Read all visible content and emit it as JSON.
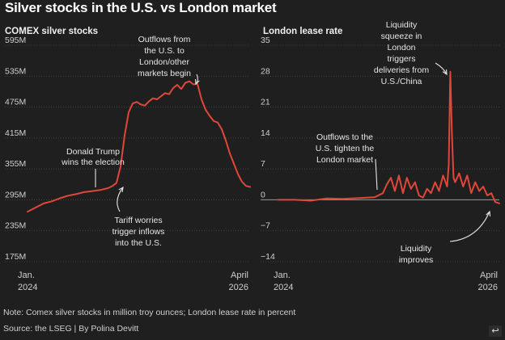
{
  "title": "Silver stocks in the U.S. vs London market",
  "footnote": "Note: Comex silver stocks in million troy ounces; London lease rate in percent",
  "source": "Source: the LSEG | By Polina Devitt",
  "corner_icon": "exit-fullscreen-icon",
  "colors": {
    "line": "#e0473a",
    "background": "#1f1f1f",
    "grid": "#4a4a4a",
    "text": "#cfcfcf"
  },
  "chart_data": [
    {
      "type": "line",
      "title": "COMEX silver stocks",
      "ylim": [
        175,
        595
      ],
      "yticks": [
        595,
        535,
        475,
        415,
        355,
        295,
        235,
        175
      ],
      "ytick_labels": [
        "595M",
        "535M",
        "475M",
        "415M",
        "355M",
        "295M",
        "235M",
        "175M"
      ],
      "xlim": [
        0,
        27.5
      ],
      "xtick_labels": [
        [
          "Jan.",
          "2024"
        ],
        [
          "April",
          "2026"
        ]
      ],
      "x": [
        0,
        1,
        2,
        3,
        4,
        5,
        6,
        7,
        8,
        9,
        10,
        10.5,
        11,
        11.5,
        12,
        12.5,
        13,
        13.5,
        14,
        14.5,
        15,
        15.5,
        16,
        16.5,
        17,
        17.5,
        18,
        18.5,
        19,
        19.5,
        20,
        20.5,
        21,
        21.5,
        22,
        22.5,
        23,
        23.5,
        24,
        24.5,
        25,
        25.5,
        26,
        26.5,
        27,
        27.5
      ],
      "values": [
        272,
        280,
        288,
        292,
        298,
        303,
        306,
        310,
        312,
        314,
        318,
        322,
        328,
        360,
        420,
        465,
        482,
        485,
        480,
        478,
        486,
        492,
        490,
        496,
        502,
        500,
        512,
        518,
        510,
        522,
        525,
        519,
        520,
        490,
        470,
        458,
        448,
        445,
        432,
        410,
        385,
        365,
        345,
        330,
        322,
        320
      ],
      "annotations": [
        {
          "text": [
            "Outflows from",
            "the U.S. to",
            "London/other",
            "markets begin"
          ]
        },
        {
          "text": [
            "Donald Trump",
            "wins the election"
          ]
        },
        {
          "text": [
            "Tariff worries",
            "trigger inflows",
            "into the U.S."
          ]
        }
      ]
    },
    {
      "type": "line",
      "title": "London lease rate",
      "ylim": [
        -14,
        35
      ],
      "yticks": [
        35,
        28,
        21,
        14,
        7,
        0,
        -7,
        -14
      ],
      "ytick_labels": [
        "35",
        "28",
        "21",
        "14",
        "7",
        "0",
        "−7",
        "−14"
      ],
      "xlim": [
        0,
        27.5
      ],
      "xtick_labels": [
        [
          "Jan.",
          "2024"
        ],
        [
          "April",
          "2026"
        ]
      ],
      "x": [
        0,
        2,
        4,
        6,
        8,
        10,
        11,
        12,
        13,
        13.5,
        14,
        14.5,
        15,
        15.5,
        16,
        16.5,
        17,
        17.5,
        18,
        18.5,
        19,
        19.5,
        20,
        20.5,
        21,
        21.2,
        21.4,
        21.6,
        21.8,
        22,
        22.5,
        23,
        23.5,
        24,
        24.5,
        25,
        25.5,
        26,
        26.5,
        27,
        27.5
      ],
      "values": [
        0,
        0,
        -0.2,
        0.3,
        0.2,
        0.4,
        0.5,
        0.6,
        1.5,
        3.5,
        5,
        2,
        5.5,
        1.5,
        5,
        2.5,
        4,
        1,
        0.5,
        2.5,
        1.5,
        4,
        2,
        5.5,
        3,
        8,
        29,
        15,
        5,
        4,
        6,
        3,
        5.5,
        1.5,
        4,
        2,
        3,
        1,
        1.5,
        -0.5,
        -0.8
      ],
      "annotations": [
        {
          "text": [
            "Liquidity",
            "squeeze in",
            "London",
            "triggers",
            "deliveries from",
            "U.S./China"
          ]
        },
        {
          "text": [
            "Outflows to the",
            "U.S. tighten the",
            "London market"
          ]
        },
        {
          "text": [
            "Liquidity",
            "improves"
          ]
        }
      ]
    }
  ]
}
